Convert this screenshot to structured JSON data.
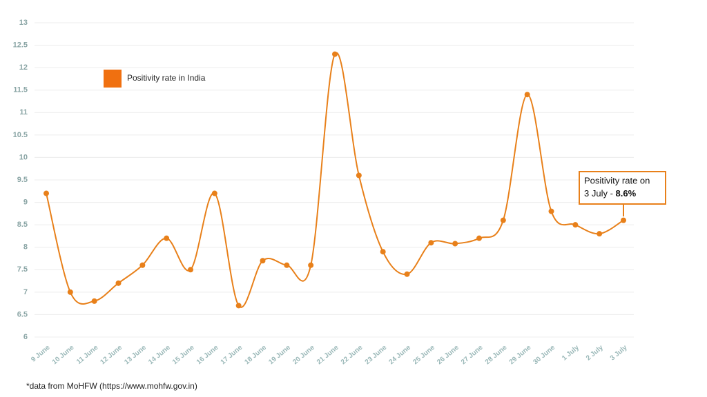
{
  "chart_data": {
    "type": "line",
    "categories": [
      "9 June",
      "10 June",
      "11 June",
      "12 June",
      "13 June",
      "14 June",
      "15 June",
      "16 June",
      "17 June",
      "18 June",
      "19 June",
      "20 June",
      "21 June",
      "22 June",
      "23 June",
      "24 June",
      "25 June",
      "26 June",
      "27 June",
      "28 June",
      "29 June",
      "30 June",
      "1 July",
      "2 July",
      "3 July"
    ],
    "series": [
      {
        "name": "Positivity rate in India",
        "color": "#e8801a",
        "values": [
          9.2,
          7.0,
          6.8,
          7.2,
          7.6,
          8.2,
          7.5,
          9.2,
          6.7,
          7.7,
          7.6,
          7.6,
          12.3,
          9.6,
          7.9,
          7.4,
          8.1,
          8.08,
          8.2,
          8.6,
          11.4,
          8.8,
          8.5,
          8.3,
          8.6
        ]
      }
    ],
    "ylim": [
      6,
      13
    ],
    "yticks": [
      6,
      6.5,
      7,
      7.5,
      8,
      8.5,
      9,
      9.5,
      10,
      10.5,
      11,
      11.5,
      12,
      12.5,
      13
    ],
    "grid": true,
    "annotation": {
      "lines": [
        "Positivity rate on",
        "3 July - "
      ],
      "highlight": "8.6%"
    },
    "footnote": "*data from MoHFW (https://www.mohfw.gov.in)"
  }
}
